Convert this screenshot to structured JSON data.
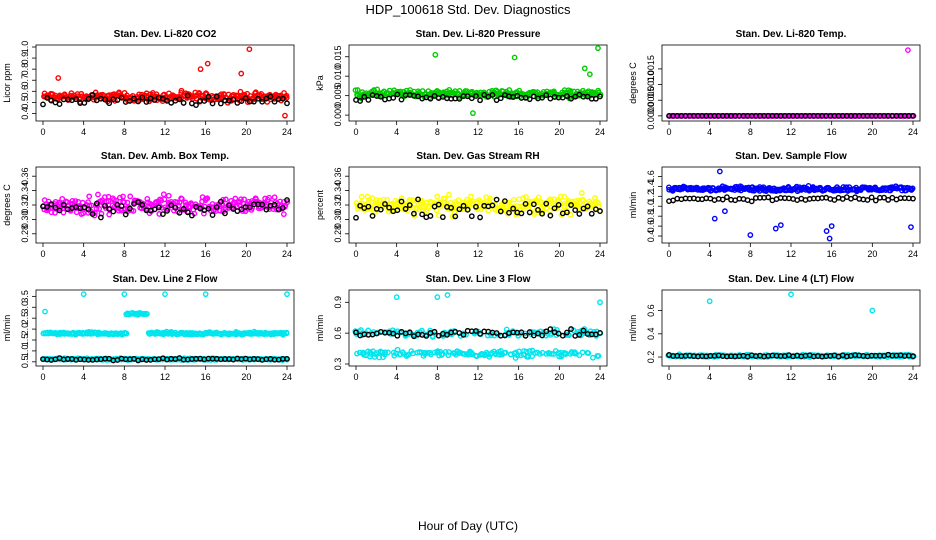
{
  "figure": {
    "title": "HDP_100618  Std. Dev. Diagnostics",
    "xlabel": "Hour of Day (UTC)"
  },
  "chart_data": [
    {
      "type": "scatter",
      "title": "Stan. Dev. Li-820 CO2",
      "ylabel": "Licor ppm",
      "color": "#ff0000",
      "xlim": [
        0,
        24
      ],
      "ylim": [
        0.35,
        1.0
      ],
      "xticks": [
        "0",
        "4",
        "8",
        "12",
        "16",
        "20",
        "24"
      ],
      "yticks": [
        "0.4",
        "0.5",
        "0.6",
        "0.7",
        "0.8",
        "0.9",
        "1.0"
      ],
      "ytick_values": [
        0.4,
        0.5,
        0.6,
        0.7,
        0.8,
        0.9,
        1.0
      ],
      "base": 0.55,
      "spread": 0.06,
      "black_base": 0.52,
      "outliers": [
        [
          1.5,
          0.72
        ],
        [
          15.5,
          0.8
        ],
        [
          16.2,
          0.85
        ],
        [
          19.5,
          0.76
        ],
        [
          20.3,
          0.98
        ],
        [
          23.8,
          0.38
        ]
      ]
    },
    {
      "type": "scatter",
      "title": "Stan. Dev. Li-820 Pressure",
      "ylabel": "kPa",
      "color": "#00cc00",
      "xlim": [
        0,
        24
      ],
      "ylim": [
        -0.001,
        0.0175
      ],
      "xticks": [
        "0",
        "4",
        "8",
        "12",
        "16",
        "20",
        "24"
      ],
      "yticks": [
        "0.000",
        "0.005",
        "0.010",
        "0.015"
      ],
      "ytick_values": [
        0.0,
        0.005,
        0.01,
        0.015
      ],
      "base": 0.0055,
      "spread": 0.0014,
      "black_base": 0.0045,
      "outliers": [
        [
          7.8,
          0.0155
        ],
        [
          15.6,
          0.0148
        ],
        [
          23.8,
          0.0172
        ],
        [
          22.5,
          0.012
        ],
        [
          23,
          0.0105
        ],
        [
          11.5,
          0.0005
        ]
      ]
    },
    {
      "type": "scatter",
      "title": "Stan. Dev. Li-820 Temp.",
      "ylabel": "degrees C",
      "color": "#ff00ff",
      "xlim": [
        0,
        24
      ],
      "ylim": [
        -0.0001,
        0.0022
      ],
      "xticks": [
        "0",
        "4",
        "8",
        "12",
        "16",
        "20",
        "24"
      ],
      "yticks": [
        "0.0000",
        "0.0005",
        "0.0010",
        "0.0015"
      ],
      "ytick_values": [
        0,
        0.0005,
        0.001,
        0.0015
      ],
      "base": 0.0,
      "spread": 0.0,
      "black_base": 0.0,
      "outliers": [
        [
          23.5,
          0.0021
        ]
      ]
    },
    {
      "type": "scatter",
      "title": "Stan. Dev. Amb. Box Temp.",
      "ylabel": "degrees C",
      "color": "#ff00ff",
      "xlim": [
        0,
        24
      ],
      "ylim": [
        0.27,
        0.37
      ],
      "xticks": [
        "0",
        "4",
        "8",
        "12",
        "16",
        "20",
        "24"
      ],
      "yticks": [
        "0.28",
        "0.30",
        "0.32",
        "0.34",
        "0.36"
      ],
      "ytick_values": [
        0.28,
        0.3,
        0.32,
        0.34,
        0.36
      ],
      "base": 0.32,
      "spread": 0.018,
      "black_base": 0.315,
      "outliers": []
    },
    {
      "type": "scatter",
      "title": "Stan. Dev. Gas Stream RH",
      "ylabel": "percent",
      "color": "#ffff00",
      "xlim": [
        0,
        24
      ],
      "ylim": [
        0.27,
        0.37
      ],
      "xticks": [
        "0",
        "4",
        "8",
        "12",
        "16",
        "20",
        "24"
      ],
      "yticks": [
        "0.28",
        "0.30",
        "0.32",
        "0.34",
        "0.36"
      ],
      "ytick_values": [
        0.28,
        0.3,
        0.32,
        0.34,
        0.36
      ],
      "base": 0.32,
      "spread": 0.018,
      "black_base": 0.315,
      "outliers": []
    },
    {
      "type": "scatter",
      "title": "Stan. Dev. Sample Flow",
      "ylabel": "ml/min",
      "color": "#0000ff",
      "xlim": [
        0,
        24
      ],
      "ylim": [
        0.3,
        1.75
      ],
      "xticks": [
        "0",
        "4",
        "8",
        "12",
        "16",
        "20",
        "24"
      ],
      "yticks": [
        "0.4",
        "0.6",
        "0.8",
        "1.0",
        "1.2",
        "1.4",
        "1.6"
      ],
      "ytick_values": [
        0.4,
        0.6,
        0.8,
        1.0,
        1.2,
        1.4,
        1.6
      ],
      "base": 1.35,
      "spread": 0.07,
      "black_base": 1.15,
      "outliers": [
        [
          5,
          1.7
        ],
        [
          5.5,
          0.9
        ],
        [
          8,
          0.42
        ],
        [
          10.5,
          0.55
        ],
        [
          11,
          0.62
        ],
        [
          15.5,
          0.5
        ],
        [
          15.8,
          0.35
        ],
        [
          16,
          0.6
        ],
        [
          23.8,
          0.58
        ],
        [
          4.5,
          0.75
        ]
      ]
    },
    {
      "type": "scatter",
      "title": "Stan. Dev. Line 2 Flow",
      "ylabel": "ml/min",
      "color": "#00e5ee",
      "xlim": [
        0,
        24
      ],
      "ylim": [
        0.4,
        3.7
      ],
      "xticks": [
        "0",
        "4",
        "8",
        "12",
        "16",
        "20",
        "24"
      ],
      "yticks": [
        "0.5",
        "1.0",
        "1.5",
        "2.0",
        "2.5",
        "3.0",
        "3.5"
      ],
      "ytick_values": [
        0.5,
        1.0,
        1.5,
        2.0,
        2.5,
        3.0,
        3.5
      ],
      "base": 1.8,
      "spread": 0.08,
      "black_base": 0.62,
      "low_base": 0.62,
      "outliers": [
        [
          0.2,
          2.8
        ],
        [
          4,
          3.6
        ],
        [
          8,
          3.6
        ],
        [
          12,
          3.6
        ],
        [
          16,
          3.6
        ],
        [
          24,
          3.6
        ]
      ]
    },
    {
      "type": "scatter",
      "title": "Stan. Dev. Line 3 Flow",
      "ylabel": "ml/min",
      "color": "#00e5ee",
      "xlim": [
        0,
        24
      ],
      "ylim": [
        0.3,
        1.0
      ],
      "xticks": [
        "0",
        "4",
        "8",
        "12",
        "16",
        "20",
        "24"
      ],
      "yticks": [
        "0.3",
        "0.6",
        "0.9"
      ],
      "ytick_values": [
        0.3,
        0.6,
        0.9
      ],
      "base": 0.6,
      "spread": 0.05,
      "black_base": 0.6,
      "low_base": 0.4,
      "outliers": [
        [
          4,
          0.95
        ],
        [
          8,
          0.95
        ],
        [
          9,
          0.97
        ],
        [
          24,
          0.9
        ]
      ]
    },
    {
      "type": "scatter",
      "title": "Stan. Dev. Line 4 (LT) Flow",
      "ylabel": "ml/min",
      "color": "#00e5ee",
      "xlim": [
        0,
        24
      ],
      "ylim": [
        0.14,
        0.76
      ],
      "xticks": [
        "0",
        "4",
        "8",
        "12",
        "16",
        "20",
        "24"
      ],
      "yticks": [
        "0.2",
        "0.4",
        "0.6"
      ],
      "ytick_values": [
        0.2,
        0.4,
        0.6
      ],
      "base": 0.21,
      "spread": 0.015,
      "black_base": 0.21,
      "outliers": [
        [
          4,
          0.68
        ],
        [
          12,
          0.74
        ],
        [
          20,
          0.6
        ]
      ]
    }
  ]
}
